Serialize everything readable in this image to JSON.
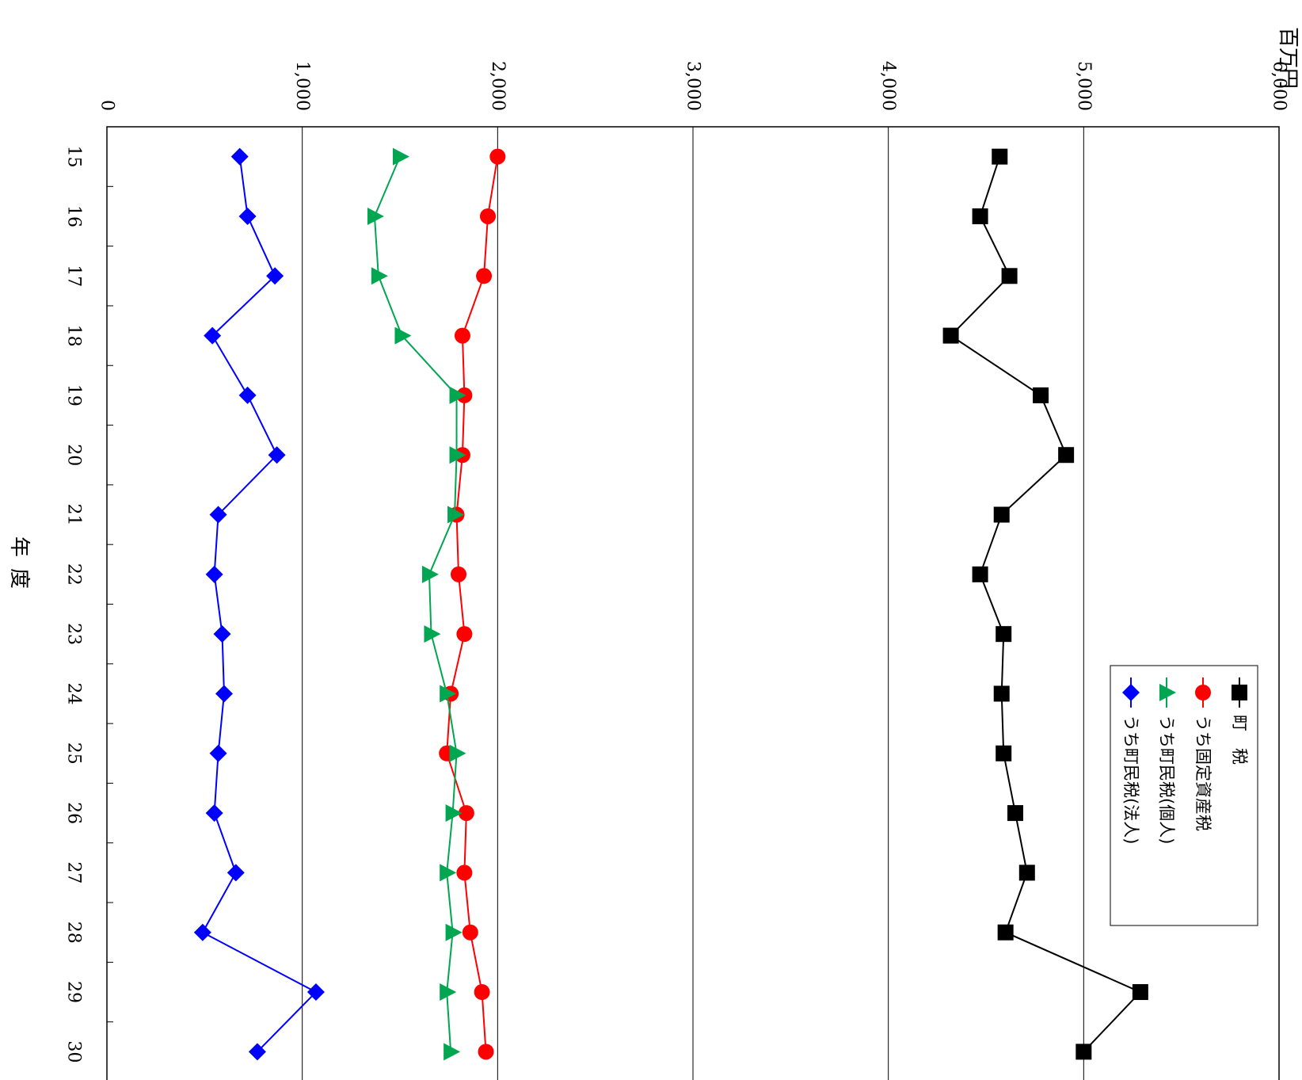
{
  "chart_data": {
    "type": "line",
    "orientation": "rotated-90-clockwise",
    "unit_label": "百万円",
    "xlabel_chars": [
      "年",
      "度"
    ],
    "categories": [
      "15",
      "16",
      "17",
      "18",
      "19",
      "20",
      "21",
      "22",
      "23",
      "24",
      "25",
      "26",
      "27",
      "28",
      "29",
      "30"
    ],
    "y_ticks": [
      "0",
      "1,000",
      "2,000",
      "3,000",
      "4,000",
      "5,000",
      "6,000"
    ],
    "ylim": [
      0,
      6000
    ],
    "grid": true,
    "legend_position": "top-right",
    "series": [
      {
        "name": "町　税",
        "marker": "square",
        "color": "#000000",
        "values": [
          4570,
          4470,
          4620,
          4320,
          4780,
          4910,
          4580,
          4470,
          4590,
          4580,
          4590,
          4650,
          4710,
          4600,
          5290,
          5000
        ]
      },
      {
        "name": "うち固定資産税",
        "marker": "circle",
        "color": "#ff0000",
        "values": [
          2000,
          1950,
          1930,
          1820,
          1830,
          1820,
          1790,
          1800,
          1830,
          1760,
          1740,
          1840,
          1830,
          1860,
          1920,
          1940
        ]
      },
      {
        "name": "うち町民税(個人)",
        "marker": "triangle",
        "color": "#00a650",
        "values": [
          1500,
          1370,
          1390,
          1510,
          1790,
          1790,
          1780,
          1650,
          1660,
          1740,
          1790,
          1770,
          1740,
          1770,
          1740,
          1760
        ]
      },
      {
        "name": "うち町民税(法人)",
        "marker": "diamond",
        "color": "#0000ff",
        "values": [
          680,
          720,
          860,
          540,
          720,
          870,
          570,
          550,
          590,
          600,
          570,
          550,
          660,
          490,
          1070,
          770
        ]
      }
    ]
  }
}
